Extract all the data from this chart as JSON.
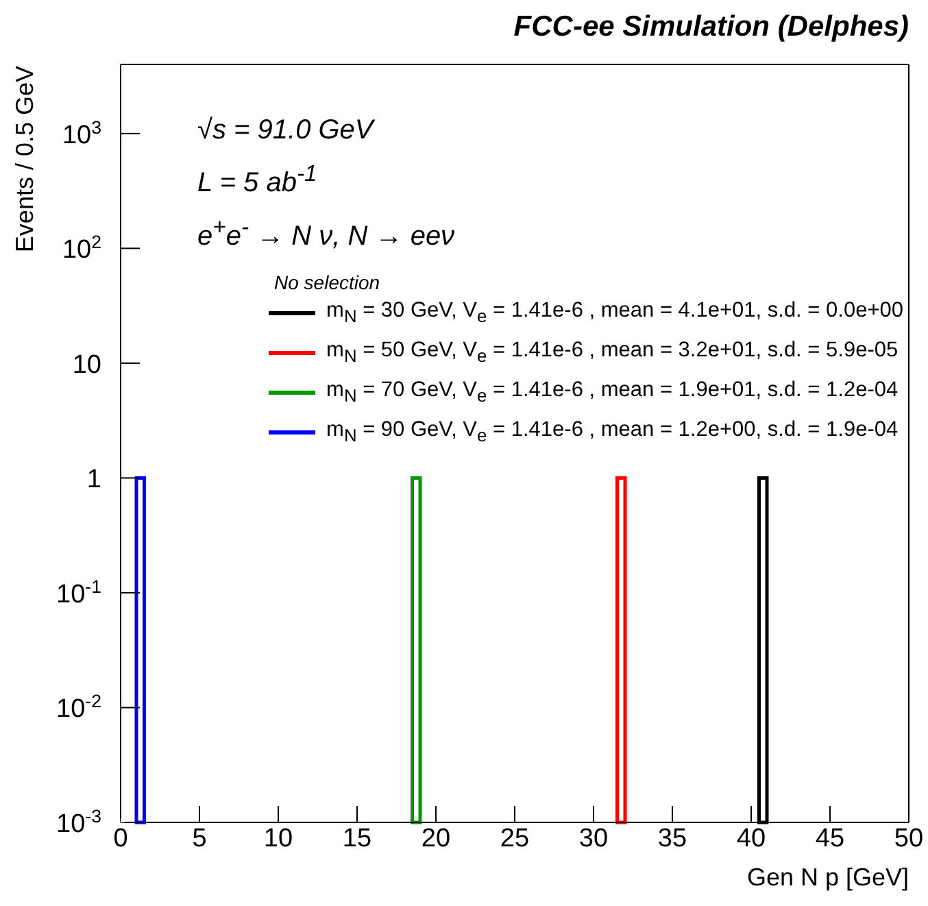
{
  "chart_data": {
    "type": "histogram",
    "title": "FCC-ee Simulation (Delphes)",
    "xlabel": "Gen N p [GeV]",
    "ylabel": "Events / 0.5 GeV",
    "annotations": [
      "√s = 91.0 GeV",
      "L = 5 ab$^{-1}$",
      "e$^{+}$e$^{-}$ → N ν, N → eeν"
    ],
    "legend_title": "No selection",
    "legend": "top right",
    "log": "y",
    "xlim": [
      0,
      50
    ],
    "xticks": [
      0,
      5,
      10,
      15,
      20,
      25,
      30,
      35,
      40,
      45,
      50
    ],
    "ylim": [
      0.001,
      4000
    ],
    "yticks": [
      {
        "value": 0.001,
        "label": "10$^{-3}$"
      },
      {
        "value": 0.01,
        "label": "10$^{-2}$"
      },
      {
        "value": 0.1,
        "label": "10$^{-1}$"
      },
      1,
      10,
      {
        "value": 100,
        "label": "10$^{2}$"
      },
      {
        "value": 1000,
        "label": "10$^{3}$"
      }
    ],
    "bins": [
      0,
      0.5,
      1,
      1.5,
      2,
      2.5,
      3,
      3.5,
      4,
      4.5,
      5,
      5.5,
      6,
      6.5,
      7,
      7.5,
      8,
      8.5,
      9,
      9.5,
      10,
      10.5,
      11,
      11.5,
      12,
      12.5,
      13,
      13.5,
      14,
      14.5,
      15,
      15.5,
      16,
      16.5,
      17,
      17.5,
      18,
      18.5,
      19,
      19.5,
      20,
      20.5,
      21,
      21.5,
      22,
      22.5,
      23,
      23.5,
      24,
      24.5,
      25,
      25.5,
      26,
      26.5,
      27,
      27.5,
      28,
      28.5,
      29,
      29.5,
      30,
      30.5,
      31,
      31.5,
      32,
      32.5,
      33,
      33.5,
      34,
      34.5,
      35,
      35.5,
      36,
      36.5,
      37,
      37.5,
      38,
      38.5,
      39,
      39.5,
      40,
      40.5,
      41,
      41.5,
      42,
      42.5,
      43,
      43.5,
      44,
      44.5,
      45,
      45.5,
      46,
      46.5,
      47,
      47.5,
      48,
      48.5,
      49,
      49.5,
      50
    ],
    "series": [
      {
        "name": "m$_{N}$ = 30 GeV, V$_{e}$ = 1.41e-6 , mean = 4.1e+01, s.d. = 0.0e+00",
        "color": "#000000",
        "values": [
          null,
          null,
          null,
          null,
          null,
          null,
          null,
          null,
          null,
          null,
          null,
          null,
          null,
          null,
          null,
          null,
          null,
          null,
          null,
          null,
          null,
          null,
          null,
          null,
          null,
          null,
          null,
          null,
          null,
          null,
          null,
          null,
          null,
          null,
          null,
          null,
          null,
          null,
          null,
          null,
          null,
          null,
          null,
          null,
          null,
          null,
          null,
          null,
          null,
          null,
          null,
          null,
          null,
          null,
          null,
          null,
          null,
          null,
          null,
          null,
          null,
          null,
          null,
          null,
          null,
          null,
          null,
          null,
          null,
          null,
          null,
          null,
          null,
          null,
          null,
          null,
          null,
          null,
          null,
          null,
          null,
          1,
          null,
          null,
          null,
          null,
          null,
          null,
          null,
          null,
          null,
          null,
          null,
          null,
          null,
          null,
          null,
          null,
          null,
          null
        ]
      },
      {
        "name": "m$_{N}$ = 50 GeV, V$_{e}$ = 1.41e-6 , mean = 3.2e+01, s.d. = 5.9e-05",
        "color": "#ff0000",
        "values": [
          null,
          null,
          null,
          null,
          null,
          null,
          null,
          null,
          null,
          null,
          null,
          null,
          null,
          null,
          null,
          null,
          null,
          null,
          null,
          null,
          null,
          null,
          null,
          null,
          null,
          null,
          null,
          null,
          null,
          null,
          null,
          null,
          null,
          null,
          null,
          null,
          null,
          null,
          null,
          null,
          null,
          null,
          null,
          null,
          null,
          null,
          null,
          null,
          null,
          null,
          null,
          null,
          null,
          null,
          null,
          null,
          null,
          null,
          null,
          null,
          null,
          null,
          null,
          1,
          null,
          null,
          null,
          null,
          null,
          null,
          null,
          null,
          null,
          null,
          null,
          null,
          null,
          null,
          null,
          null,
          null,
          null,
          null,
          null,
          null,
          null,
          null,
          null,
          null,
          null,
          null,
          null,
          null,
          null,
          null,
          null,
          null,
          null,
          null,
          null
        ]
      },
      {
        "name": "m$_{N}$ = 70 GeV, V$_{e}$ = 1.41e-6 , mean = 1.9e+01, s.d. = 1.2e-04",
        "color": "#009900",
        "values": [
          null,
          null,
          null,
          null,
          null,
          null,
          null,
          null,
          null,
          null,
          null,
          null,
          null,
          null,
          null,
          null,
          null,
          null,
          null,
          null,
          null,
          null,
          null,
          null,
          null,
          null,
          null,
          null,
          null,
          null,
          null,
          null,
          null,
          null,
          null,
          null,
          null,
          1,
          null,
          null,
          null,
          null,
          null,
          null,
          null,
          null,
          null,
          null,
          null,
          null,
          null,
          null,
          null,
          null,
          null,
          null,
          null,
          null,
          null,
          null,
          null,
          null,
          null,
          null,
          null,
          null,
          null,
          null,
          null,
          null,
          null,
          null,
          null,
          null,
          null,
          null,
          null,
          null,
          null,
          null,
          null,
          null,
          null,
          null,
          null,
          null,
          null,
          null,
          null,
          null,
          null,
          null,
          null,
          null,
          null,
          null,
          null,
          null,
          null,
          null
        ]
      },
      {
        "name": "m$_{N}$ = 90 GeV, V$_{e}$ = 1.41e-6 , mean = 1.2e+00, s.d. = 1.9e-04",
        "color": "#0000ff",
        "values": [
          null,
          null,
          1,
          null,
          null,
          null,
          null,
          null,
          null,
          null,
          null,
          null,
          null,
          null,
          null,
          null,
          null,
          null,
          null,
          null,
          null,
          null,
          null,
          null,
          null,
          null,
          null,
          null,
          null,
          null,
          null,
          null,
          null,
          null,
          null,
          null,
          null,
          null,
          null,
          null,
          null,
          null,
          null,
          null,
          null,
          null,
          null,
          null,
          null,
          null,
          null,
          null,
          null,
          null,
          null,
          null,
          null,
          null,
          null,
          null,
          null,
          null,
          null,
          null,
          null,
          null,
          null,
          null,
          null,
          null,
          null,
          null,
          null,
          null,
          null,
          null,
          null,
          null,
          null,
          null,
          null,
          null,
          null,
          null,
          null,
          null,
          null,
          null,
          null,
          null,
          null,
          null,
          null,
          null,
          null,
          null,
          null,
          null,
          null,
          null
        ]
      }
    ]
  }
}
